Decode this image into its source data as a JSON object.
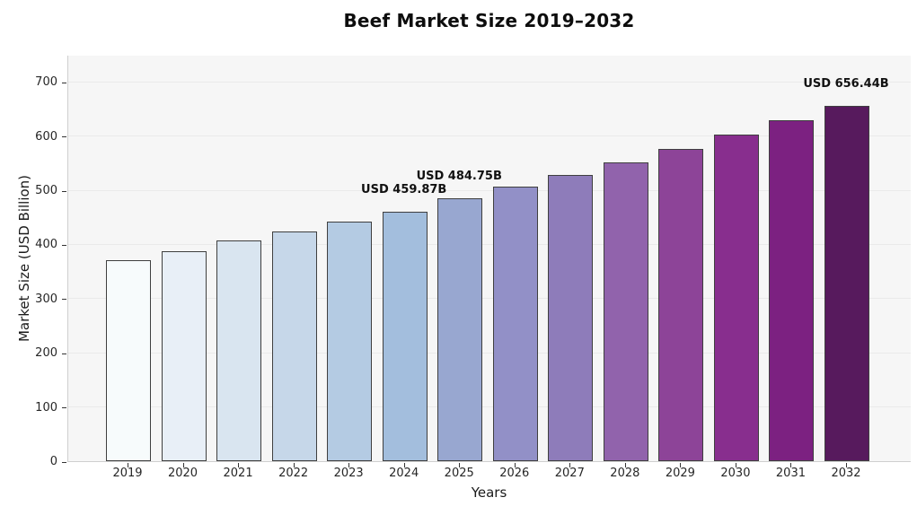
{
  "title": "Beef Market Size 2019–2032",
  "chart_data": {
    "type": "bar",
    "title": "Beef Market Size 2019–2032",
    "xlabel": "Years",
    "ylabel": "Market Size (USD Billion)",
    "categories": [
      "2019",
      "2020",
      "2021",
      "2022",
      "2023",
      "2024",
      "2025",
      "2026",
      "2027",
      "2028",
      "2029",
      "2030",
      "2031",
      "2032"
    ],
    "values": [
      371.5,
      387.4,
      406.5,
      423.3,
      442.5,
      459.87,
      484.75,
      506.3,
      528.7,
      552.1,
      576.5,
      602.0,
      628.7,
      656.44
    ],
    "bar_colors": [
      "#f7fbfc",
      "#e8eff7",
      "#d9e5f0",
      "#c6d7e9",
      "#b4cbe3",
      "#a3bedd",
      "#98a7d0",
      "#9290c7",
      "#8e7cba",
      "#9163ac",
      "#8d4498",
      "#882e8e",
      "#7c2181",
      "#571a5d"
    ],
    "bar_edge_color": "#3f3f3f",
    "ylim": [
      0,
      750
    ],
    "yticks": [
      0,
      100,
      200,
      300,
      400,
      500,
      600,
      700
    ],
    "grid": true,
    "legend": "none",
    "plot_background": "#f6f6f6",
    "grid_color": "#eaeaea",
    "annotations": [
      {
        "category": "2024",
        "text": "USD 459.87B"
      },
      {
        "category": "2025",
        "text": "USD 484.75B"
      },
      {
        "category": "2032",
        "text": "USD 656.44B"
      }
    ]
  }
}
